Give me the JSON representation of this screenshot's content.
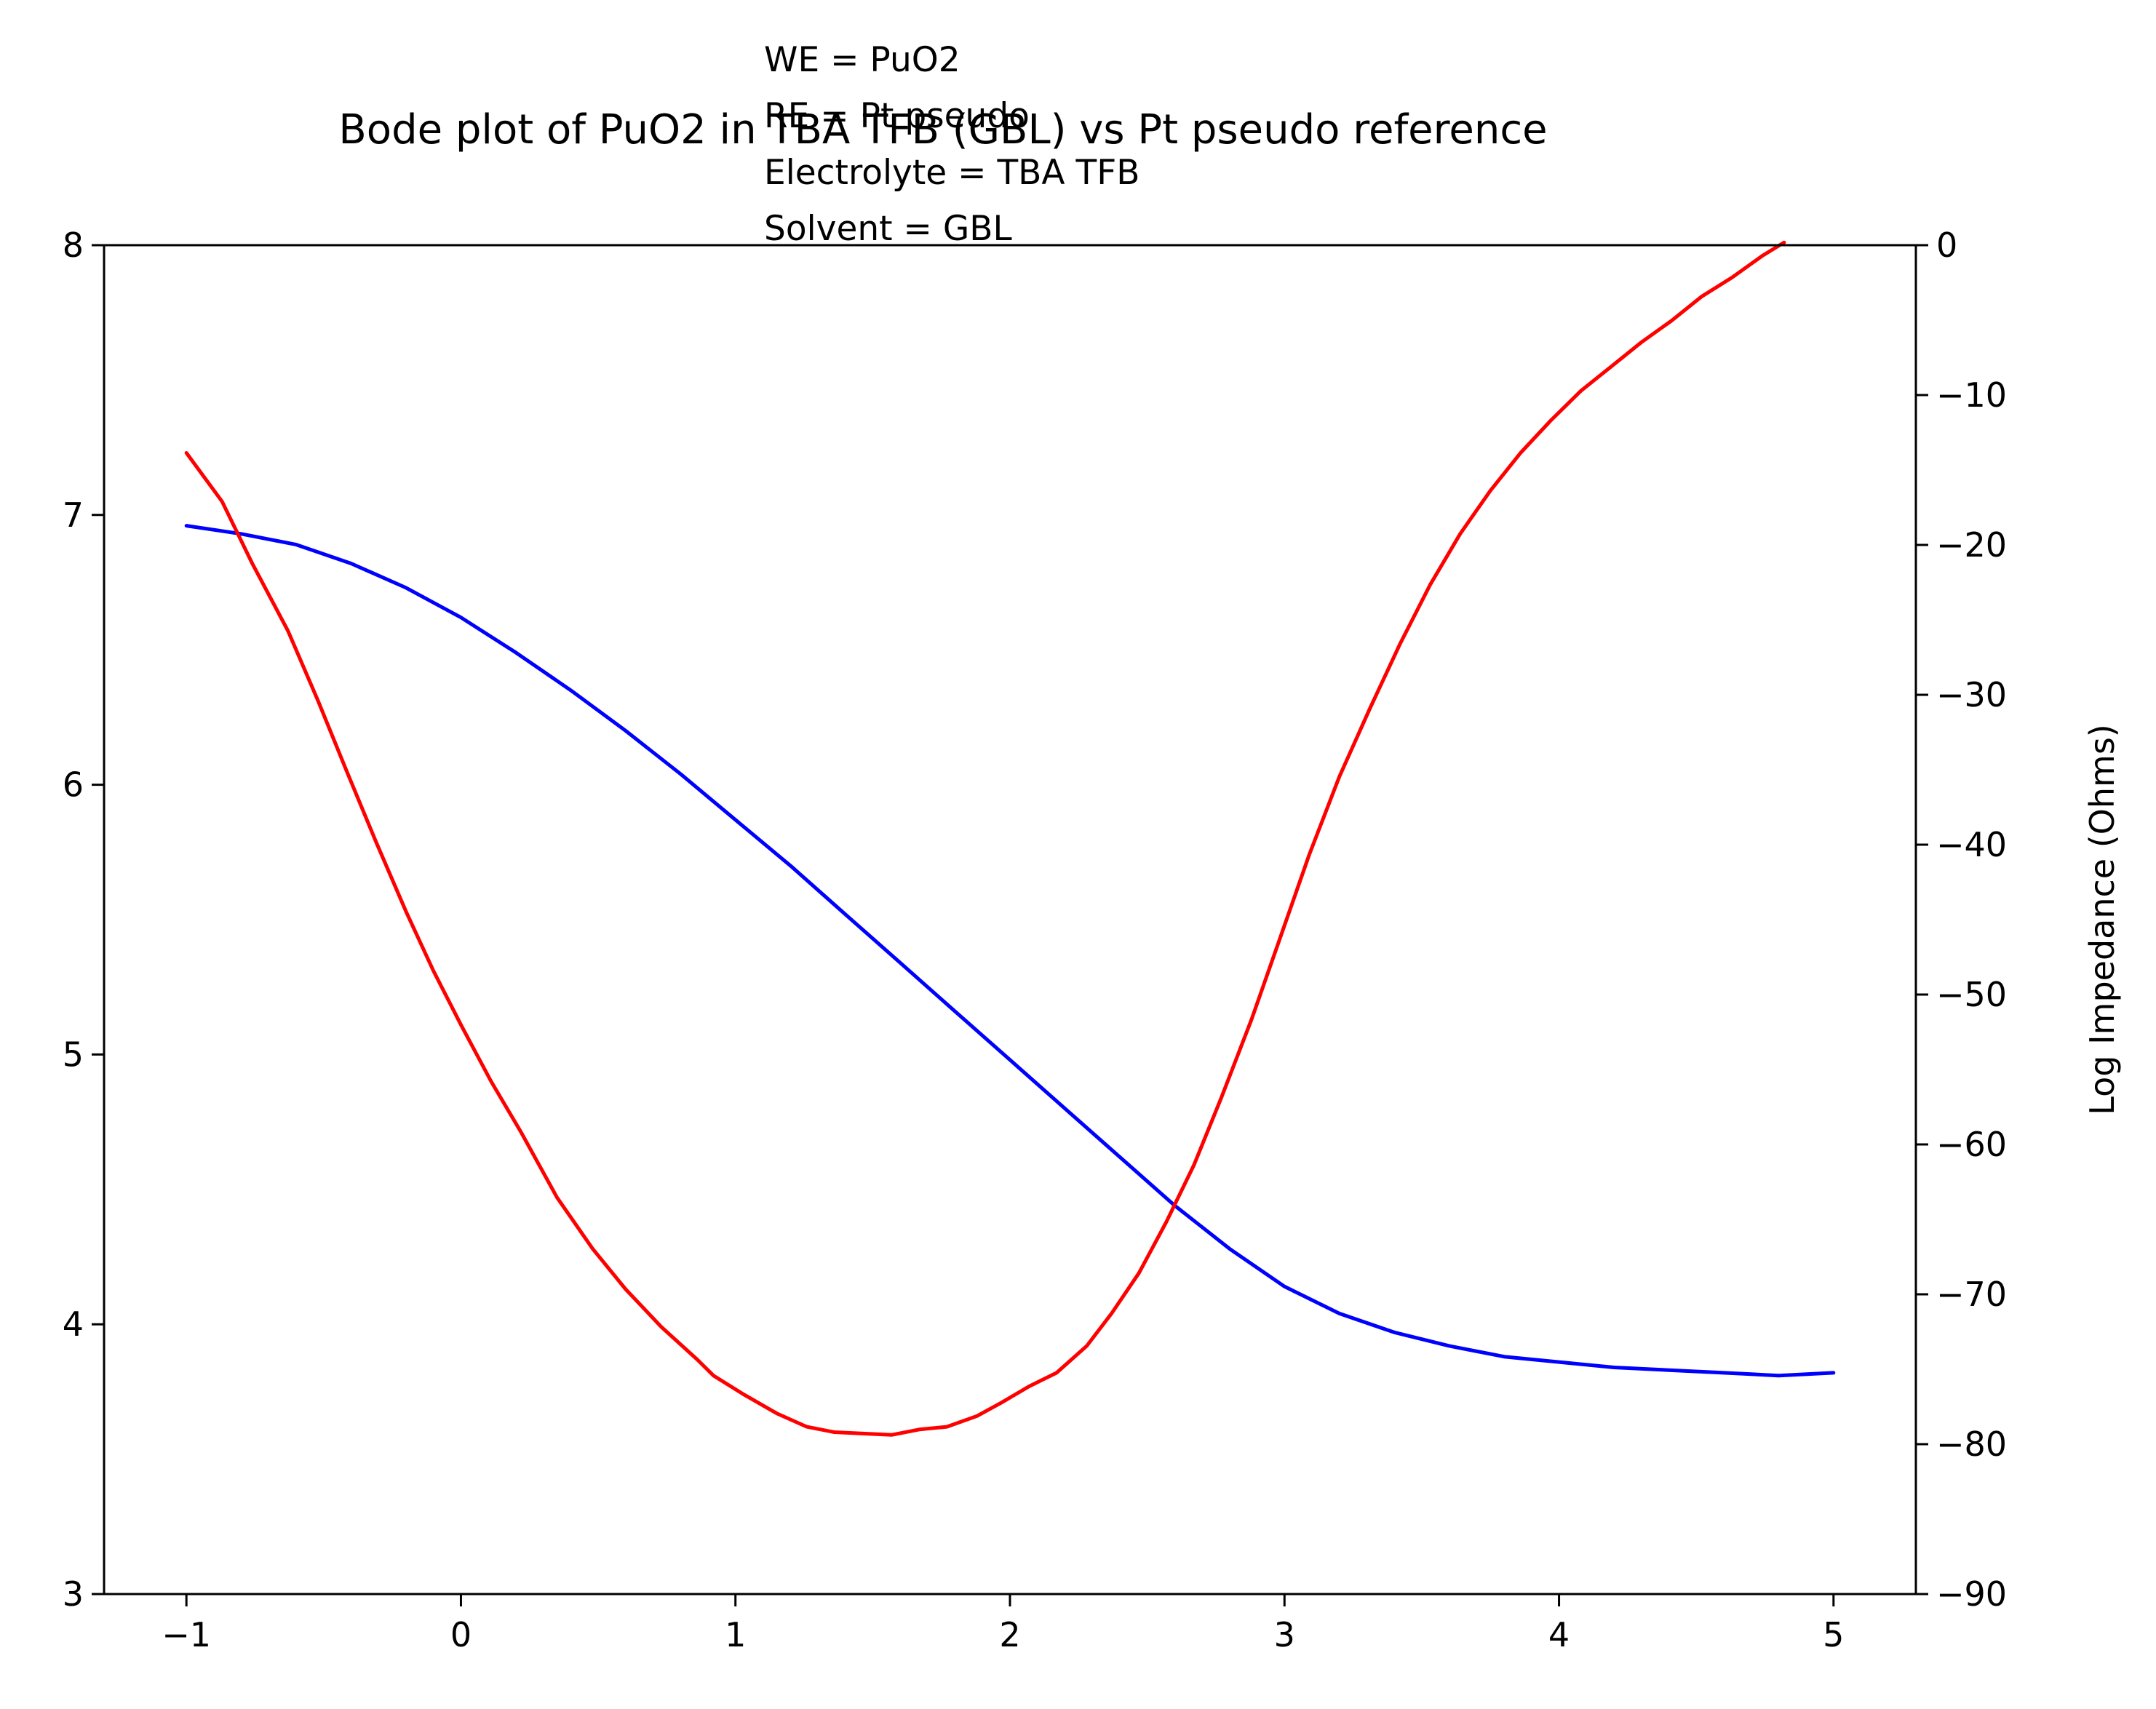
{
  "chart_data": {
    "type": "line",
    "title": "Bode plot of PuO2 in TBA TFB (GBL) vs Pt pseudo reference",
    "annotation_lines": [
      "WE = PuO2",
      "RE = Pt pseudo",
      "Electrolyte = TBA TFB",
      "Solvent = GBL"
    ],
    "xlabel": "",
    "ylabel_left": "",
    "ylabel_right": "Log Impedance (Ohms)",
    "xlim": [
      -1.3,
      5.3
    ],
    "ylim_left": [
      3,
      8
    ],
    "ylim_right": [
      -90,
      0
    ],
    "x_ticks": [
      -1,
      0,
      1,
      2,
      3,
      4,
      5
    ],
    "x_tick_labels": [
      "−1",
      "0",
      "1",
      "2",
      "3",
      "4",
      "5"
    ],
    "y_left_ticks": [
      3,
      4,
      5,
      6,
      7,
      8
    ],
    "y_left_tick_labels": [
      "3",
      "4",
      "5",
      "6",
      "7",
      "8"
    ],
    "y_right_ticks": [
      -90,
      -80,
      -70,
      -60,
      -50,
      -40,
      -30,
      -20,
      -10,
      0
    ],
    "y_right_tick_labels": [
      "−90",
      "−80",
      "−70",
      "−60",
      "−50",
      "−40",
      "−30",
      "−20",
      "−10",
      "0"
    ],
    "grid": false,
    "legend": "none",
    "series": [
      {
        "axis": "left",
        "color": "#0000ff",
        "points": [
          [
            -1.0,
            6.96
          ],
          [
            -0.8,
            6.93
          ],
          [
            -0.6,
            6.89
          ],
          [
            -0.4,
            6.82
          ],
          [
            -0.2,
            6.73
          ],
          [
            0.0,
            6.62
          ],
          [
            0.2,
            6.49
          ],
          [
            0.4,
            6.35
          ],
          [
            0.6,
            6.2
          ],
          [
            0.8,
            6.04
          ],
          [
            1.0,
            5.87
          ],
          [
            1.2,
            5.7
          ],
          [
            1.4,
            5.52
          ],
          [
            1.6,
            5.34
          ],
          [
            1.8,
            5.16
          ],
          [
            2.0,
            4.98
          ],
          [
            2.2,
            4.8
          ],
          [
            2.4,
            4.62
          ],
          [
            2.6,
            4.44
          ],
          [
            2.8,
            4.28
          ],
          [
            3.0,
            4.14
          ],
          [
            3.2,
            4.04
          ],
          [
            3.4,
            3.97
          ],
          [
            3.6,
            3.92
          ],
          [
            3.8,
            3.88
          ],
          [
            4.0,
            3.86
          ],
          [
            4.2,
            3.84
          ],
          [
            4.4,
            3.83
          ],
          [
            4.6,
            3.82
          ],
          [
            4.8,
            3.81
          ],
          [
            5.0,
            3.82
          ]
        ]
      },
      {
        "axis": "left",
        "color": "#ff0000",
        "points": [
          [
            -1.0,
            7.23
          ],
          [
            -0.87,
            7.05
          ],
          [
            -0.76,
            6.82
          ],
          [
            -0.63,
            6.57
          ],
          [
            -0.52,
            6.31
          ],
          [
            -0.42,
            6.06
          ],
          [
            -0.31,
            5.79
          ],
          [
            -0.2,
            5.53
          ],
          [
            -0.1,
            5.31
          ],
          [
            0.0,
            5.11
          ],
          [
            0.11,
            4.9
          ],
          [
            0.22,
            4.71
          ],
          [
            0.35,
            4.47
          ],
          [
            0.48,
            4.28
          ],
          [
            0.6,
            4.13
          ],
          [
            0.73,
            3.99
          ],
          [
            0.86,
            3.87
          ],
          [
            0.92,
            3.81
          ],
          [
            1.03,
            3.74
          ],
          [
            1.15,
            3.67
          ],
          [
            1.26,
            3.62
          ],
          [
            1.36,
            3.6
          ],
          [
            1.57,
            3.59
          ],
          [
            1.67,
            3.61
          ],
          [
            1.77,
            3.62
          ],
          [
            1.88,
            3.66
          ],
          [
            1.97,
            3.71
          ],
          [
            2.07,
            3.77
          ],
          [
            2.17,
            3.82
          ],
          [
            2.28,
            3.92
          ],
          [
            2.37,
            4.04
          ],
          [
            2.47,
            4.19
          ],
          [
            2.57,
            4.38
          ],
          [
            2.67,
            4.59
          ],
          [
            2.77,
            4.84
          ],
          [
            2.88,
            5.13
          ],
          [
            2.98,
            5.42
          ],
          [
            3.09,
            5.74
          ],
          [
            3.2,
            6.03
          ],
          [
            3.31,
            6.28
          ],
          [
            3.42,
            6.52
          ],
          [
            3.53,
            6.74
          ],
          [
            3.64,
            6.93
          ],
          [
            3.75,
            7.09
          ],
          [
            3.86,
            7.23
          ],
          [
            3.97,
            7.35
          ],
          [
            4.08,
            7.46
          ],
          [
            4.19,
            7.55
          ],
          [
            4.3,
            7.64
          ],
          [
            4.41,
            7.72
          ],
          [
            4.52,
            7.81
          ],
          [
            4.63,
            7.88
          ],
          [
            4.74,
            7.96
          ],
          [
            4.82,
            8.01
          ]
        ]
      }
    ]
  }
}
